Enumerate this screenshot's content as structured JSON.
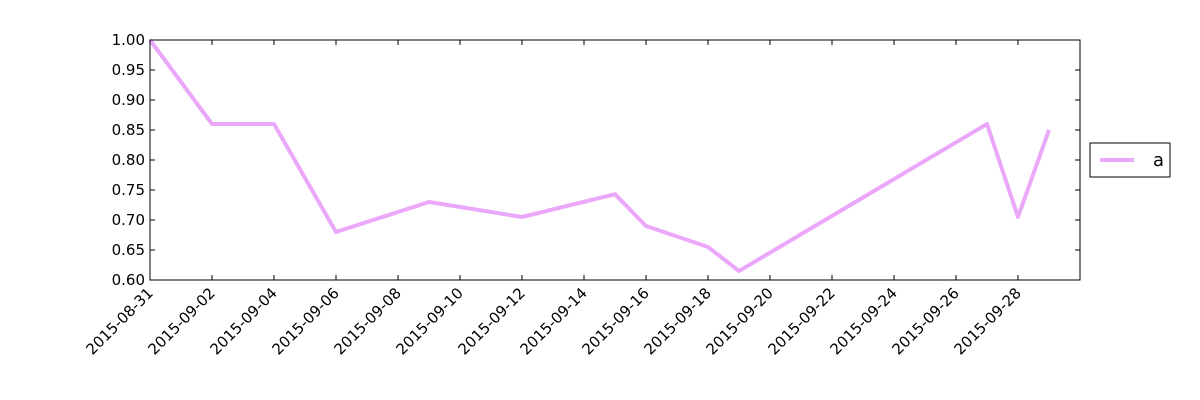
{
  "chart_data": {
    "type": "line",
    "x": [
      "2015-08-31",
      "2015-09-02",
      "2015-09-04",
      "2015-09-06",
      "2015-09-09",
      "2015-09-12",
      "2015-09-15",
      "2015-09-16",
      "2015-09-18",
      "2015-09-19",
      "2015-09-27",
      "2015-09-28",
      "2015-09-29"
    ],
    "series": [
      {
        "name": "a",
        "color": "#eba7f9",
        "values": [
          1.0,
          0.86,
          0.86,
          0.68,
          0.73,
          0.705,
          0.743,
          0.69,
          0.655,
          0.615,
          0.86,
          0.705,
          0.85
        ]
      }
    ],
    "xlim": [
      "2015-08-31",
      "2015-09-30"
    ],
    "xticks": [
      "2015-08-31",
      "2015-09-02",
      "2015-09-04",
      "2015-09-06",
      "2015-09-08",
      "2015-09-10",
      "2015-09-12",
      "2015-09-14",
      "2015-09-16",
      "2015-09-18",
      "2015-09-20",
      "2015-09-22",
      "2015-09-24",
      "2015-09-26",
      "2015-09-28"
    ],
    "ylim": [
      0.6,
      1.0
    ],
    "yticks": [
      {
        "value": 0.6,
        "label": "0.60"
      },
      {
        "value": 0.65,
        "label": "0.65"
      },
      {
        "value": 0.7,
        "label": "0.70"
      },
      {
        "value": 0.75,
        "label": "0.75"
      },
      {
        "value": 0.8,
        "label": "0.80"
      },
      {
        "value": 0.85,
        "label": "0.85"
      },
      {
        "value": 0.9,
        "label": "0.90"
      },
      {
        "value": 0.95,
        "label": "0.95"
      },
      {
        "value": 1.0,
        "label": "1.00"
      }
    ],
    "grid": false,
    "legend": "outside right"
  }
}
